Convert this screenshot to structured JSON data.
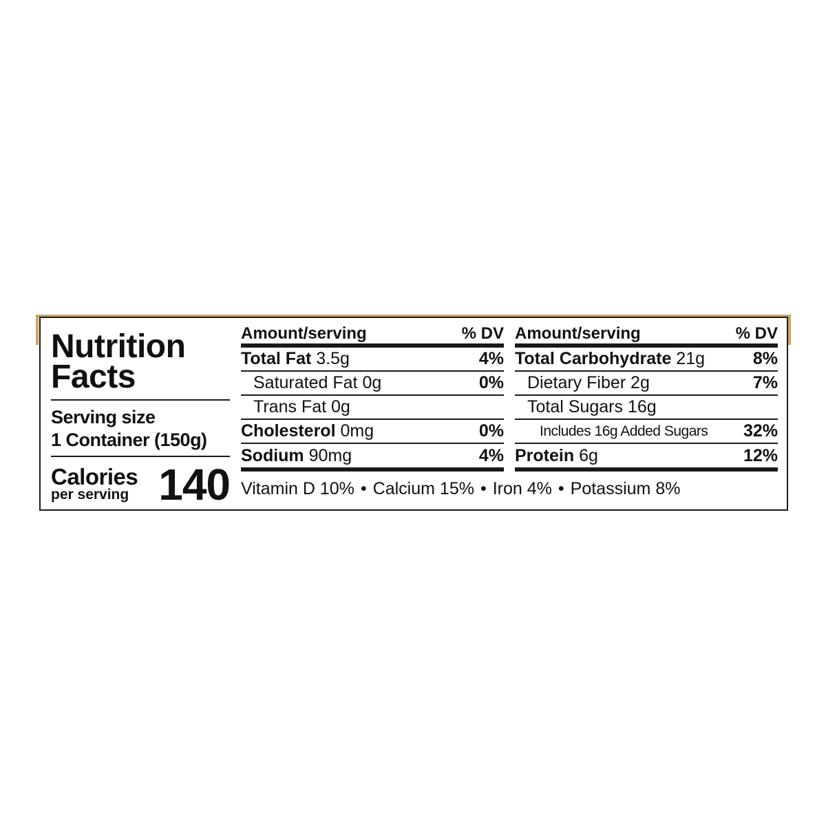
{
  "colors": {
    "accent_band": "#c9a56a",
    "ink": "#111111"
  },
  "title": "Nutrition Facts",
  "title_line1": "Nutrition",
  "title_line2": "Facts",
  "serving": {
    "label": "Serving size",
    "value": "1 Container (150g)"
  },
  "calories": {
    "label": "Calories",
    "sublabel": "per serving",
    "value": "140"
  },
  "header": {
    "amount": "Amount/serving",
    "dv": "% DV"
  },
  "left_rows": [
    {
      "name": "Total Fat",
      "amount": "3.5g",
      "dv": "4%"
    },
    {
      "name": "Saturated Fat",
      "amount": "0g",
      "dv": "0%"
    },
    {
      "name": "Trans Fat",
      "amount": "0g",
      "dv": ""
    },
    {
      "name": "Cholesterol",
      "amount": "0mg",
      "dv": "0%"
    },
    {
      "name": "Sodium",
      "amount": "90mg",
      "dv": "4%"
    }
  ],
  "right_rows": [
    {
      "name": "Total Carbohydrate",
      "amount": "21g",
      "dv": "8%"
    },
    {
      "name": "Dietary Fiber",
      "amount": "2g",
      "dv": "7%"
    },
    {
      "name": "Total Sugars",
      "amount": "16g",
      "dv": ""
    },
    {
      "name": "Includes 16g Added Sugars",
      "amount": "",
      "dv": "32%"
    },
    {
      "name": "Protein",
      "amount": "6g",
      "dv": "12%"
    }
  ],
  "vitamins": [
    "Vitamin D 10%",
    "Calcium 15%",
    "Iron 4%",
    "Potassium 8%"
  ],
  "separator": "•"
}
